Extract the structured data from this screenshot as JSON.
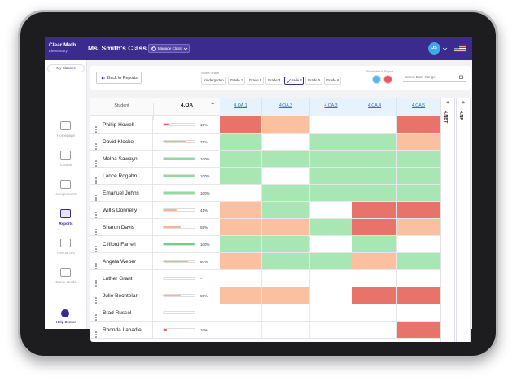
{
  "brand": {
    "name": "Clear Math",
    "sub": "Elementary"
  },
  "class_title": "Ms. Smith's Class",
  "manage_button": "Manage Class",
  "avatar": "JS",
  "sidebar": {
    "my_classes": "My Classes",
    "items": [
      "Homepage",
      "Course",
      "Assignments",
      "Reports",
      "Resources",
      "Game Guide"
    ],
    "active": "Reports",
    "help": "Help Center"
  },
  "filters": {
    "back": "Back to Reports",
    "grade_label": "Select Grade",
    "grades": [
      "Kindergarten",
      "Grade 1",
      "Grade 2",
      "Grade 3",
      "Grade 4",
      "Grade 5",
      "Grade 6"
    ],
    "selected_grade": "Grade 4",
    "show_hide_label": "Show/Hide in Report",
    "date_placeholder": "Select Date Range"
  },
  "table": {
    "student_header": "Student",
    "domain": "4.OA",
    "collapse": "−",
    "standards": [
      "4.OA.1",
      "4.OA.2",
      "4.OA.3",
      "4.OA.4",
      "4.OA.5"
    ],
    "collapsed_domains": [
      "4.NBT",
      "4.NF"
    ],
    "expand": "+",
    "rows": [
      {
        "name": "Phillip Howell",
        "score": 15,
        "label": "15%",
        "bar_color": "#e8605a",
        "cells": [
          "#e8736b",
          "#fbc0a0",
          "#ffffff",
          "#ffffff",
          "#e8736b"
        ]
      },
      {
        "name": "David Klocko",
        "score": 70,
        "label": "70%",
        "bar_color": "#8fdca0",
        "cells": [
          "#a8e6b4",
          "#ffffff",
          "#a8e6b4",
          "#a8e6b4",
          "#fbc0a0"
        ]
      },
      {
        "name": "Melba Sawayn",
        "score": 100,
        "label": "100%",
        "bar_color": "#8fdca0",
        "cells": [
          "#a8e6b4",
          "#a8e6b4",
          "#a8e6b4",
          "#a8e6b4",
          "#a8e6b4"
        ]
      },
      {
        "name": "Lance Rogahn",
        "score": 100,
        "label": "100%",
        "bar_color": "#8fdca0",
        "cells": [
          "#a8e6b4",
          "#ffffff",
          "#a8e6b4",
          "#a8e6b4",
          "#a8e6b4"
        ]
      },
      {
        "name": "Emanuel Johns",
        "score": 100,
        "label": "100%",
        "bar_color": "#8fdca0",
        "cells": [
          "#ffffff",
          "#a8e6b4",
          "#a8e6b4",
          "#a8e6b4",
          "#a8e6b4"
        ]
      },
      {
        "name": "Willis Donnelly",
        "score": 41,
        "label": "41%",
        "bar_color": "#f7b48e",
        "cells": [
          "#fbc0a0",
          "#a8e6b4",
          "#ffffff",
          "#e8736b",
          "#e8736b"
        ]
      },
      {
        "name": "Sharon Davis",
        "score": 55,
        "label": "55%",
        "bar_color": "#f7b48e",
        "cells": [
          "#fbc0a0",
          "#fbc0a0",
          "#a8e6b4",
          "#e8736b",
          "#fbc0a0"
        ]
      },
      {
        "name": "Clifford Farrell",
        "score": 100,
        "label": "100%",
        "bar_color": "#6fcf86",
        "cells": [
          "#a8e6b4",
          "#a8e6b4",
          "#ffffff",
          "#a8e6b4",
          "#ffffff"
        ]
      },
      {
        "name": "Angela Weber",
        "score": 80,
        "label": "80%",
        "bar_color": "#8fdca0",
        "cells": [
          "#fbc0a0",
          "#a8e6b4",
          "#a8e6b4",
          "#fbc0a0",
          "#a8e6b4"
        ]
      },
      {
        "name": "Luther Grant",
        "score": null,
        "label": "–",
        "bar_color": "#8fdca0",
        "cells": [
          "#ffffff",
          "#ffffff",
          "#ffffff",
          "#ffffff",
          "#ffffff"
        ]
      },
      {
        "name": "Julie Bechtelar",
        "score": 55,
        "label": "55%",
        "bar_color": "#f7b48e",
        "cells": [
          "#fbc0a0",
          "#fbc0a0",
          "#ffffff",
          "#e8736b",
          "#e8736b"
        ]
      },
      {
        "name": "Brad Russel",
        "score": null,
        "label": "–",
        "bar_color": "#8fdca0",
        "cells": [
          "#ffffff",
          "#ffffff",
          "#ffffff",
          "#ffffff",
          "#ffffff"
        ]
      },
      {
        "name": "Rhonda Labadie",
        "score": 10,
        "label": "10%",
        "bar_color": "#e8605a",
        "cells": [
          "#ffffff",
          "#ffffff",
          "#ffffff",
          "#ffffff",
          "#e8736b"
        ]
      }
    ]
  }
}
